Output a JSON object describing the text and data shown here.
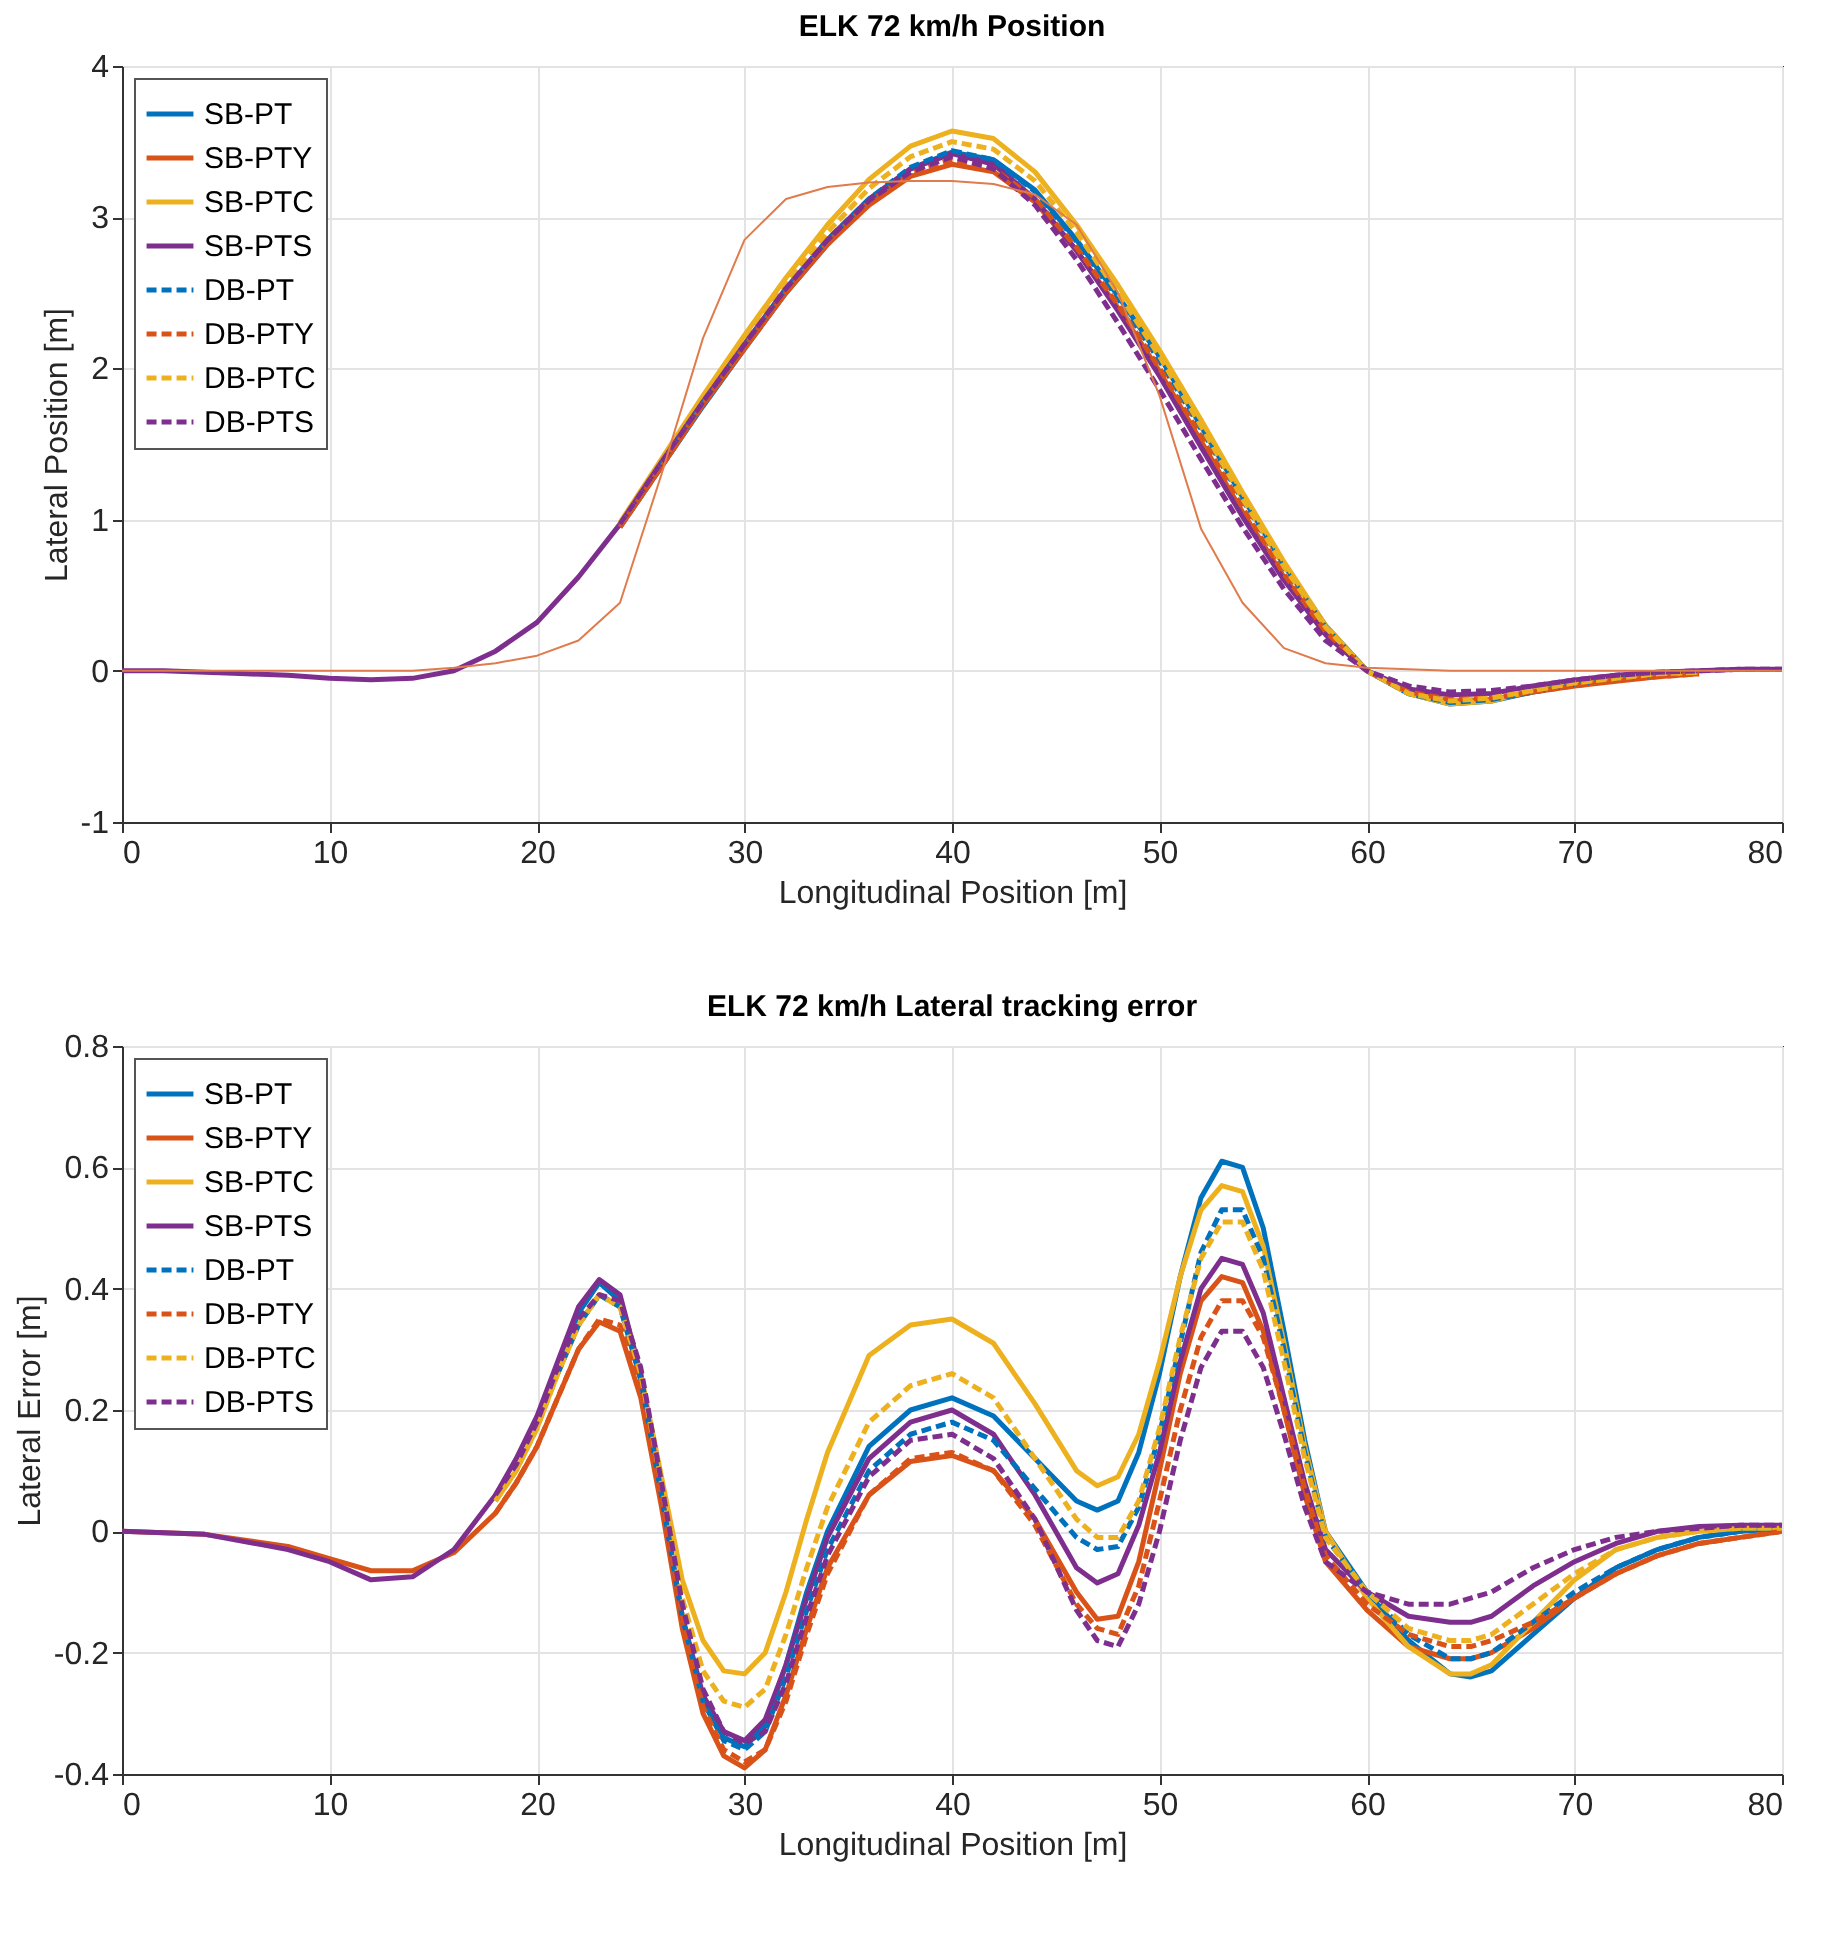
{
  "chart_data": [
    {
      "type": "line",
      "title": "ELK 72 km/h Position",
      "xlabel": "Longitudinal Position [m]",
      "ylabel": "Lateral Position [m]",
      "xlim": [
        0,
        80
      ],
      "xticks": [
        0,
        10,
        20,
        30,
        40,
        50,
        60,
        70,
        80
      ],
      "ylim": [
        -1,
        4
      ],
      "yticks": [
        -1,
        0,
        1,
        2,
        3,
        4
      ],
      "grid": true,
      "legend": "top left",
      "x": [
        0,
        2,
        4,
        6,
        8,
        10,
        12,
        14,
        16,
        18,
        20,
        22,
        24,
        26,
        28,
        30,
        32,
        34,
        36,
        38,
        40,
        42,
        44,
        46,
        48,
        50,
        52,
        54,
        56,
        58,
        60,
        62,
        64,
        66,
        68,
        70,
        72,
        74,
        76,
        78,
        80
      ],
      "series": [
        {
          "name": "SB-PT",
          "color": "#0072bd",
          "line_style": "solid",
          "values": [
            null,
            null,
            null,
            null,
            null,
            null,
            null,
            null,
            null,
            null,
            null,
            null,
            0.95,
            1.35,
            1.75,
            2.13,
            2.5,
            2.82,
            3.1,
            3.32,
            3.43,
            3.38,
            3.18,
            2.85,
            2.48,
            2.08,
            1.62,
            1.15,
            0.7,
            0.3,
            0,
            -0.15,
            -0.22,
            -0.2,
            -0.14,
            -0.09,
            -0.06,
            -0.03,
            -0.01,
            null,
            null
          ]
        },
        {
          "name": "SB-PTY",
          "color": "#d95319",
          "line_style": "solid",
          "values": [
            null,
            null,
            null,
            null,
            null,
            null,
            null,
            null,
            null,
            null,
            null,
            null,
            0.95,
            1.35,
            1.76,
            2.13,
            2.5,
            2.82,
            3.08,
            3.27,
            3.35,
            3.3,
            3.1,
            2.78,
            2.4,
            1.98,
            1.52,
            1.05,
            0.62,
            0.25,
            0,
            -0.14,
            -0.2,
            -0.19,
            -0.14,
            -0.1,
            -0.07,
            -0.04,
            -0.02,
            null,
            null
          ]
        },
        {
          "name": "SB-PTC",
          "color": "#edb120",
          "line_style": "solid",
          "values": [
            null,
            null,
            null,
            null,
            null,
            null,
            null,
            null,
            null,
            null,
            null,
            null,
            0.98,
            1.4,
            1.82,
            2.22,
            2.6,
            2.95,
            3.25,
            3.47,
            3.57,
            3.52,
            3.3,
            2.95,
            2.55,
            2.12,
            1.66,
            1.18,
            0.72,
            0.3,
            0,
            -0.15,
            -0.22,
            -0.2,
            -0.13,
            -0.08,
            -0.04,
            -0.02,
            -0.01,
            null,
            null
          ]
        },
        {
          "name": "SB-PTS",
          "color": "#7e2f8e",
          "line_style": "solid",
          "values": [
            0,
            0,
            -0.01,
            -0.02,
            -0.03,
            -0.05,
            -0.06,
            -0.05,
            0,
            0.13,
            0.32,
            0.62,
            0.97,
            1.38,
            1.78,
            2.16,
            2.53,
            2.85,
            3.12,
            3.32,
            3.42,
            3.35,
            3.12,
            2.78,
            2.38,
            1.95,
            1.48,
            1.02,
            0.6,
            0.24,
            0,
            -0.12,
            -0.16,
            -0.15,
            -0.1,
            -0.06,
            -0.03,
            -0.01,
            0,
            0.01,
            0.01
          ]
        },
        {
          "name": "DB-PT",
          "color": "#0072bd",
          "line_style": "dashed",
          "values": [
            null,
            null,
            null,
            null,
            null,
            null,
            null,
            null,
            null,
            null,
            null,
            null,
            null,
            1.36,
            1.77,
            2.15,
            2.52,
            2.85,
            3.12,
            3.33,
            3.44,
            3.38,
            3.17,
            2.84,
            2.46,
            2.05,
            1.6,
            1.13,
            0.68,
            0.29,
            0,
            -0.15,
            -0.21,
            -0.19,
            -0.14,
            -0.09,
            -0.05,
            -0.03,
            null,
            null,
            null
          ]
        },
        {
          "name": "DB-PTY",
          "color": "#d95319",
          "line_style": "dashed",
          "values": [
            null,
            null,
            null,
            null,
            null,
            null,
            null,
            null,
            null,
            null,
            null,
            null,
            0.95,
            1.35,
            1.76,
            2.14,
            2.5,
            2.83,
            3.1,
            3.29,
            3.38,
            3.32,
            3.12,
            2.8,
            2.42,
            2,
            1.55,
            1.08,
            0.64,
            0.26,
            0,
            -0.14,
            -0.19,
            -0.18,
            -0.14,
            -0.1,
            -0.06,
            -0.04,
            -0.02,
            null,
            null
          ]
        },
        {
          "name": "DB-PTC",
          "color": "#edb120",
          "line_style": "dashed",
          "values": [
            null,
            null,
            null,
            null,
            null,
            null,
            null,
            null,
            null,
            null,
            null,
            null,
            0.97,
            1.38,
            1.8,
            2.19,
            2.56,
            2.9,
            3.19,
            3.4,
            3.5,
            3.45,
            3.24,
            2.9,
            2.5,
            2.08,
            1.62,
            1.14,
            0.69,
            0.29,
            0,
            -0.15,
            -0.2,
            -0.18,
            -0.13,
            -0.08,
            -0.05,
            -0.02,
            -0.01,
            null,
            null
          ]
        },
        {
          "name": "DB-PTS",
          "color": "#7e2f8e",
          "line_style": "dashed",
          "values": [
            null,
            null,
            null,
            null,
            null,
            null,
            null,
            null,
            null,
            null,
            null,
            null,
            0.97,
            1.38,
            1.78,
            2.16,
            2.53,
            2.85,
            3.11,
            3.3,
            3.4,
            3.32,
            3.08,
            2.72,
            2.3,
            1.86,
            1.4,
            0.95,
            0.54,
            0.2,
            0,
            -0.1,
            -0.14,
            -0.13,
            -0.1,
            -0.06,
            -0.03,
            -0.01,
            0,
            0.01,
            0.01
          ]
        },
        {
          "color": "#e07b4c",
          "line_style": "solid",
          "values": [
            0,
            0,
            0,
            0,
            0,
            0,
            0,
            0,
            0.02,
            0.05,
            0.1,
            0.2,
            0.45,
            1.3,
            2.2,
            2.85,
            3.12,
            3.2,
            3.23,
            3.24,
            3.24,
            3.22,
            3.15,
            2.95,
            2.5,
            1.82,
            0.94,
            0.45,
            0.15,
            0.05,
            0.02,
            0.01,
            0,
            0,
            0,
            0,
            0,
            0,
            0,
            0,
            0
          ]
        }
      ]
    },
    {
      "type": "line",
      "title": "ELK 72 km/h Lateral tracking error",
      "xlabel": "Longitudinal Position [m]",
      "ylabel": "Lateral Error [m]",
      "xlim": [
        0,
        80
      ],
      "xticks": [
        0,
        10,
        20,
        30,
        40,
        50,
        60,
        70,
        80
      ],
      "ylim": [
        -0.4,
        0.8
      ],
      "yticks": [
        -0.4,
        -0.2,
        0,
        0.2,
        0.4,
        0.6,
        0.8
      ],
      "grid": true,
      "legend": "top left",
      "x": [
        0,
        4,
        8,
        10,
        12,
        14,
        16,
        18,
        19,
        20,
        21,
        22,
        23,
        24,
        25,
        26,
        27,
        28,
        29,
        30,
        31,
        32,
        33,
        34,
        36,
        38,
        40,
        42,
        44,
        46,
        47,
        48,
        49,
        50,
        51,
        52,
        53,
        54,
        55,
        56,
        57,
        58,
        60,
        62,
        64,
        65,
        66,
        68,
        70,
        72,
        74,
        76,
        78,
        80
      ],
      "series": [
        {
          "name": "SB-PT",
          "color": "#0072bd",
          "line_style": "solid",
          "values": [
            null,
            null,
            null,
            null,
            null,
            null,
            null,
            null,
            null,
            0.18,
            0.27,
            0.36,
            0.41,
            0.38,
            0.25,
            0.05,
            -0.15,
            -0.28,
            -0.34,
            -0.355,
            -0.32,
            -0.22,
            -0.1,
            0,
            0.14,
            0.2,
            0.22,
            0.19,
            0.12,
            0.05,
            0.035,
            0.05,
            0.13,
            0.26,
            0.42,
            0.55,
            0.61,
            0.6,
            0.5,
            0.33,
            0.15,
            0,
            -0.1,
            -0.18,
            -0.235,
            -0.24,
            -0.23,
            -0.17,
            -0.11,
            -0.06,
            -0.03,
            -0.01,
            0,
            0.005
          ]
        },
        {
          "name": "SB-PTY",
          "color": "#d95319",
          "line_style": "solid",
          "values": [
            0,
            -0.005,
            -0.025,
            -0.045,
            -0.065,
            -0.065,
            -0.035,
            0.03,
            0.08,
            0.14,
            0.22,
            0.3,
            0.345,
            0.33,
            0.22,
            0.04,
            -0.16,
            -0.3,
            -0.37,
            -0.39,
            -0.36,
            -0.27,
            -0.16,
            -0.06,
            0.06,
            0.115,
            0.125,
            0.1,
            0.02,
            -0.1,
            -0.145,
            -0.14,
            -0.05,
            0.1,
            0.26,
            0.38,
            0.42,
            0.41,
            0.33,
            0.2,
            0.06,
            -0.05,
            -0.13,
            -0.19,
            -0.21,
            -0.21,
            -0.2,
            -0.16,
            -0.11,
            -0.07,
            -0.04,
            -0.02,
            -0.01,
            0
          ]
        },
        {
          "name": "SB-PTC",
          "color": "#edb120",
          "line_style": "solid",
          "values": [
            null,
            null,
            null,
            null,
            null,
            null,
            null,
            0.05,
            0.1,
            0.17,
            0.26,
            0.34,
            0.39,
            0.37,
            0.26,
            0.09,
            -0.08,
            -0.18,
            -0.23,
            -0.235,
            -0.2,
            -0.1,
            0.02,
            0.13,
            0.29,
            0.34,
            0.35,
            0.31,
            0.21,
            0.1,
            0.075,
            0.09,
            0.16,
            0.28,
            0.42,
            0.53,
            0.57,
            0.56,
            0.47,
            0.31,
            0.14,
            0,
            -0.11,
            -0.19,
            -0.235,
            -0.235,
            -0.22,
            -0.15,
            -0.08,
            -0.03,
            -0.01,
            0,
            0.005,
            0.005
          ]
        },
        {
          "name": "SB-PTS",
          "color": "#7e2f8e",
          "line_style": "solid",
          "values": [
            0,
            -0.005,
            -0.03,
            -0.05,
            -0.08,
            -0.075,
            -0.03,
            0.06,
            0.12,
            0.19,
            0.28,
            0.37,
            0.415,
            0.39,
            0.26,
            0.06,
            -0.14,
            -0.27,
            -0.33,
            -0.345,
            -0.31,
            -0.22,
            -0.11,
            -0.01,
            0.12,
            0.18,
            0.2,
            0.16,
            0.06,
            -0.06,
            -0.085,
            -0.07,
            0.01,
            0.13,
            0.28,
            0.4,
            0.45,
            0.44,
            0.36,
            0.22,
            0.08,
            -0.03,
            -0.1,
            -0.14,
            -0.15,
            -0.15,
            -0.14,
            -0.09,
            -0.05,
            -0.02,
            0,
            0.008,
            0.01,
            0.01
          ]
        },
        {
          "name": "DB-PT",
          "color": "#0072bd",
          "line_style": "dashed",
          "values": [
            null,
            null,
            null,
            null,
            null,
            null,
            null,
            null,
            null,
            null,
            0.26,
            0.34,
            0.39,
            0.37,
            0.25,
            0.06,
            -0.14,
            -0.28,
            -0.345,
            -0.36,
            -0.33,
            -0.24,
            -0.13,
            -0.03,
            0.1,
            0.16,
            0.18,
            0.15,
            0.07,
            -0.01,
            -0.03,
            -0.025,
            0.04,
            0.16,
            0.31,
            0.46,
            0.53,
            0.53,
            0.45,
            0.3,
            0.13,
            -0.01,
            -0.1,
            -0.17,
            -0.21,
            -0.21,
            -0.2,
            -0.15,
            -0.1,
            -0.06,
            -0.03,
            -0.01,
            0,
            0.005
          ]
        },
        {
          "name": "DB-PTY",
          "color": "#d95319",
          "line_style": "dashed",
          "values": [
            null,
            null,
            null,
            null,
            null,
            null,
            null,
            0.03,
            0.08,
            0.14,
            0.22,
            0.3,
            0.35,
            0.34,
            0.24,
            0.06,
            -0.14,
            -0.29,
            -0.36,
            -0.38,
            -0.36,
            -0.28,
            -0.17,
            -0.07,
            0.06,
            0.12,
            0.13,
            0.1,
            0.01,
            -0.12,
            -0.16,
            -0.17,
            -0.09,
            0.05,
            0.2,
            0.32,
            0.38,
            0.38,
            0.32,
            0.2,
            0.07,
            -0.04,
            -0.12,
            -0.17,
            -0.19,
            -0.19,
            -0.18,
            -0.15,
            -0.11,
            -0.07,
            -0.04,
            -0.02,
            -0.01,
            0
          ]
        },
        {
          "name": "DB-PTC",
          "color": "#edb120",
          "line_style": "dashed",
          "values": [
            null,
            null,
            null,
            null,
            null,
            null,
            null,
            0.05,
            0.1,
            0.17,
            0.26,
            0.34,
            0.39,
            0.37,
            0.26,
            0.08,
            -0.11,
            -0.23,
            -0.28,
            -0.29,
            -0.26,
            -0.17,
            -0.06,
            0.04,
            0.18,
            0.24,
            0.26,
            0.22,
            0.12,
            0.02,
            -0.01,
            -0.01,
            0.05,
            0.17,
            0.32,
            0.45,
            0.51,
            0.51,
            0.43,
            0.28,
            0.12,
            -0.01,
            -0.1,
            -0.16,
            -0.18,
            -0.18,
            -0.17,
            -0.12,
            -0.07,
            -0.03,
            -0.01,
            0,
            0.005,
            0.005
          ]
        },
        {
          "name": "DB-PTS",
          "color": "#7e2f8e",
          "line_style": "dashed",
          "values": [
            null,
            null,
            null,
            null,
            null,
            null,
            null,
            0.06,
            0.11,
            0.18,
            0.27,
            0.35,
            0.39,
            0.38,
            0.27,
            0.08,
            -0.12,
            -0.26,
            -0.33,
            -0.35,
            -0.33,
            -0.25,
            -0.14,
            -0.04,
            0.09,
            0.15,
            0.16,
            0.12,
            0.02,
            -0.13,
            -0.18,
            -0.19,
            -0.12,
            0,
            0.15,
            0.27,
            0.33,
            0.33,
            0.27,
            0.16,
            0.04,
            -0.05,
            -0.1,
            -0.12,
            -0.12,
            -0.11,
            -0.1,
            -0.06,
            -0.03,
            -0.01,
            0,
            0.005,
            0.01,
            0.01
          ]
        }
      ]
    }
  ]
}
